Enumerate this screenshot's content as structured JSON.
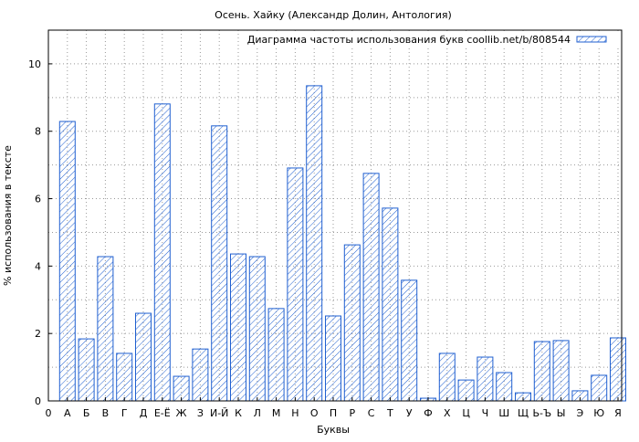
{
  "chart_data": {
    "type": "bar",
    "title": "Осень. Хайку (Александр Долин,  Антология)",
    "xlabel": "Буквы",
    "ylabel": "% использования в тексте",
    "ylim": [
      0,
      11
    ],
    "yticks": [
      0,
      2,
      4,
      6,
      8,
      10
    ],
    "grid": true,
    "legend": {
      "placement": "top-right",
      "entries": [
        "Диаграмма частоты использования букв coollib.net/b/808544"
      ]
    },
    "x_origin_label": "0",
    "categories": [
      "А",
      "Б",
      "В",
      "Г",
      "Д",
      "Е-Ё",
      "Ж",
      "З",
      "И-Й",
      "К",
      "Л",
      "М",
      "Н",
      "О",
      "П",
      "Р",
      "С",
      "Т",
      "У",
      "Ф",
      "Х",
      "Ц",
      "Ч",
      "Ш",
      "Щ",
      "Ь-Ъ",
      "Ы",
      "Э",
      "Ю",
      "Я"
    ],
    "series": [
      {
        "name": "Диаграмма частоты использования букв coollib.net/b/808544",
        "color": "#1f5fd0",
        "values": [
          8.29,
          1.84,
          4.28,
          1.41,
          2.6,
          8.81,
          0.73,
          1.54,
          8.16,
          4.36,
          4.28,
          2.74,
          6.91,
          9.35,
          2.52,
          4.63,
          6.75,
          5.72,
          3.58,
          0.08,
          1.41,
          0.62,
          1.3,
          0.84,
          0.24,
          1.76,
          1.79,
          0.3,
          0.76,
          1.87
        ]
      }
    ]
  }
}
